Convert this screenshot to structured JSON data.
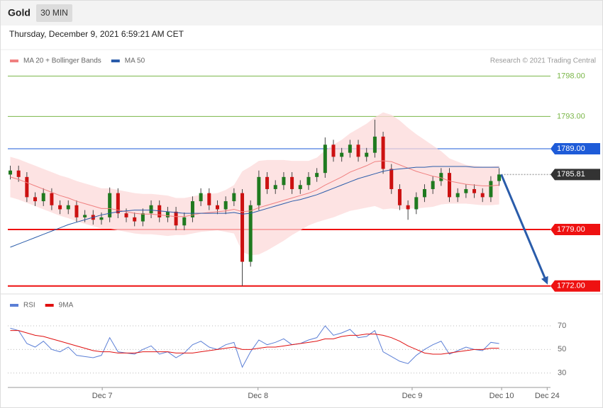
{
  "header": {
    "symbol": "Gold",
    "timeframe": "30 MIN",
    "datetime": "Thursday, December 9, 2021 6:59:21 AM CET",
    "credit": "Research © 2021 Trading Central"
  },
  "chart_data": [
    {
      "type": "candlestick",
      "up_color": "#1f7a1f",
      "down_color": "#cc1111",
      "open": [
        1785.8,
        1786.3,
        1785.5,
        1783.0,
        1782.5,
        1783.5,
        1782.0,
        1781.5,
        1782.0,
        1780.5,
        1780.8,
        1780.2,
        1780.5,
        1783.5,
        1781.0,
        1780.5,
        1780.0,
        1781.0,
        1782.0,
        1780.5,
        1781.2,
        1779.5,
        1780.5,
        1782.5,
        1783.5,
        1782.0,
        1781.5,
        1782.5,
        1783.5,
        1775.0,
        1782.0,
        1785.5,
        1784.0,
        1784.5,
        1785.5,
        1784.0,
        1784.5,
        1785.5,
        1786.0,
        1789.5,
        1788.0,
        1788.5,
        1789.5,
        1788.0,
        1788.5,
        1790.5,
        1786.5,
        1784.0,
        1782.0,
        1781.5,
        1783.0,
        1784.0,
        1785.0,
        1786.0,
        1783.0,
        1783.5,
        1784.0,
        1783.5,
        1783.0,
        1785.0
      ],
      "high": [
        1786.9,
        1786.9,
        1786.1,
        1783.6,
        1784.1,
        1784.1,
        1782.6,
        1782.6,
        1782.6,
        1781.4,
        1781.4,
        1781.1,
        1784.2,
        1784.1,
        1781.6,
        1781.1,
        1781.6,
        1782.6,
        1782.6,
        1781.8,
        1781.8,
        1781.1,
        1783.1,
        1784.1,
        1784.1,
        1782.6,
        1783.1,
        1784.1,
        1784.0,
        1782.6,
        1786.3,
        1786.1,
        1785.1,
        1786.1,
        1786.1,
        1785.1,
        1786.1,
        1786.6,
        1790.4,
        1790.1,
        1789.1,
        1790.1,
        1790.1,
        1789.1,
        1792.6,
        1791.1,
        1787.1,
        1784.6,
        1782.6,
        1783.6,
        1784.6,
        1785.6,
        1786.6,
        1786.6,
        1784.1,
        1784.6,
        1784.6,
        1784.1,
        1785.6,
        1786.6
      ],
      "low": [
        1785.2,
        1784.9,
        1782.4,
        1781.9,
        1781.9,
        1781.4,
        1780.9,
        1780.9,
        1779.9,
        1779.9,
        1779.6,
        1779.6,
        1779.9,
        1780.4,
        1779.9,
        1779.4,
        1779.4,
        1780.4,
        1779.9,
        1779.9,
        1778.9,
        1778.9,
        1779.9,
        1781.9,
        1781.4,
        1780.9,
        1780.9,
        1781.9,
        1772.0,
        1774.4,
        1781.4,
        1783.4,
        1783.4,
        1783.9,
        1783.4,
        1783.4,
        1783.9,
        1784.9,
        1785.4,
        1787.4,
        1787.4,
        1787.9,
        1787.4,
        1787.4,
        1787.9,
        1785.9,
        1783.4,
        1781.4,
        1780.2,
        1780.9,
        1782.4,
        1783.4,
        1784.4,
        1782.4,
        1782.4,
        1782.9,
        1782.9,
        1782.4,
        1782.4,
        1784.4
      ],
      "close": [
        1786.3,
        1785.5,
        1783.0,
        1782.5,
        1783.5,
        1782.0,
        1781.5,
        1782.0,
        1780.5,
        1780.8,
        1780.2,
        1780.5,
        1783.5,
        1781.0,
        1780.5,
        1780.0,
        1781.0,
        1782.0,
        1780.5,
        1781.2,
        1779.5,
        1780.5,
        1782.5,
        1783.5,
        1782.0,
        1781.5,
        1782.5,
        1783.5,
        1775.0,
        1782.0,
        1785.5,
        1784.0,
        1784.5,
        1785.5,
        1784.0,
        1784.5,
        1785.5,
        1786.0,
        1789.5,
        1788.0,
        1788.5,
        1789.5,
        1788.0,
        1788.5,
        1790.5,
        1786.5,
        1784.0,
        1782.0,
        1781.5,
        1783.0,
        1784.0,
        1785.0,
        1786.0,
        1783.0,
        1783.5,
        1784.0,
        1783.5,
        1783.0,
        1785.0,
        1785.81
      ],
      "series": [
        {
          "name": "MA 20 + Bollinger Bands",
          "color": "#f08080",
          "values": [
            1785.5,
            1785.2,
            1784.8,
            1784.4,
            1784.0,
            1783.6,
            1783.2,
            1782.9,
            1782.5,
            1782.2,
            1781.9,
            1781.6,
            1781.6,
            1781.4,
            1781.2,
            1781.0,
            1780.9,
            1780.9,
            1780.8,
            1780.7,
            1780.6,
            1780.6,
            1780.8,
            1781.0,
            1781.1,
            1781.2,
            1781.3,
            1781.5,
            1781.2,
            1781.3,
            1781.7,
            1782.0,
            1782.3,
            1782.6,
            1782.9,
            1783.2,
            1783.5,
            1783.9,
            1784.5,
            1785.0,
            1785.5,
            1786.1,
            1786.5,
            1786.9,
            1787.4,
            1787.5,
            1787.4,
            1787.0,
            1786.6,
            1786.2,
            1785.9,
            1785.6,
            1785.4,
            1785.0,
            1784.8,
            1784.6,
            1784.5,
            1784.4,
            1784.4,
            1784.5
          ],
          "upper": [
            1788.0,
            1787.7,
            1787.3,
            1786.9,
            1786.5,
            1786.1,
            1785.7,
            1785.4,
            1785.0,
            1784.7,
            1784.4,
            1784.1,
            1784.1,
            1783.9,
            1783.7,
            1783.5,
            1783.4,
            1783.4,
            1783.3,
            1783.2,
            1782.9,
            1782.9,
            1783.1,
            1783.3,
            1783.4,
            1783.5,
            1783.9,
            1784.5,
            1786.2,
            1786.8,
            1787.5,
            1787.6,
            1787.6,
            1787.6,
            1787.5,
            1787.5,
            1787.5,
            1787.9,
            1788.8,
            1789.5,
            1790.1,
            1790.9,
            1791.5,
            1792.1,
            1792.9,
            1793.5,
            1793.2,
            1792.5,
            1791.6,
            1790.8,
            1790.1,
            1789.4,
            1788.7,
            1787.8,
            1787.4,
            1787.0,
            1786.9,
            1786.8,
            1786.8,
            1786.9
          ],
          "lower": [
            1783.0,
            1782.7,
            1782.3,
            1781.9,
            1781.5,
            1781.1,
            1780.7,
            1780.4,
            1780.0,
            1779.7,
            1779.4,
            1779.1,
            1779.1,
            1778.9,
            1778.7,
            1778.5,
            1778.4,
            1778.4,
            1778.3,
            1778.2,
            1778.3,
            1778.3,
            1778.5,
            1778.7,
            1778.8,
            1778.9,
            1778.7,
            1778.5,
            1776.2,
            1775.8,
            1775.9,
            1776.4,
            1777.0,
            1777.6,
            1778.3,
            1778.9,
            1779.5,
            1779.9,
            1780.2,
            1780.5,
            1780.9,
            1781.3,
            1781.5,
            1781.7,
            1781.9,
            1781.5,
            1781.6,
            1781.5,
            1781.6,
            1781.6,
            1781.7,
            1781.8,
            1782.1,
            1782.2,
            1782.2,
            1782.2,
            1782.1,
            1782.0,
            1782.0,
            1782.1
          ]
        },
        {
          "name": "MA 50",
          "color": "#2a5caa",
          "values": [
            1776.8,
            1777.2,
            1777.6,
            1778.0,
            1778.4,
            1778.8,
            1779.2,
            1779.6,
            1779.9,
            1780.2,
            1780.5,
            1780.8,
            1781.0,
            1781.2,
            1781.3,
            1781.4,
            1781.4,
            1781.4,
            1781.3,
            1781.2,
            1781.1,
            1781.0,
            1781.0,
            1781.0,
            1781.0,
            1781.0,
            1781.0,
            1781.1,
            1780.9,
            1781.0,
            1781.3,
            1781.6,
            1781.9,
            1782.2,
            1782.5,
            1782.7,
            1783.0,
            1783.3,
            1783.7,
            1784.1,
            1784.5,
            1784.9,
            1785.3,
            1785.6,
            1785.9,
            1786.2,
            1786.4,
            1786.5,
            1786.6,
            1786.7,
            1786.7,
            1786.8,
            1786.8,
            1786.8,
            1786.8,
            1786.8,
            1786.7,
            1786.7,
            1786.7,
            1786.7
          ]
        }
      ],
      "levels": [
        {
          "value": 1798,
          "label": "1798.00",
          "color": "#7ab648",
          "tag": false
        },
        {
          "value": 1793,
          "label": "1793.00",
          "color": "#7ab648",
          "tag": false
        },
        {
          "value": 1789,
          "label": "1789.00",
          "color": "#1e5bd8",
          "tag": true
        },
        {
          "value": 1785.81,
          "label": "1785.81",
          "color": "#333333",
          "tag": true,
          "dash": true
        },
        {
          "value": 1779,
          "label": "1779.00",
          "color": "#ee1111",
          "tag": true
        },
        {
          "value": 1772,
          "label": "1772.00",
          "color": "#ee1111",
          "tag": true
        }
      ],
      "forecast_color": "#2a5caa",
      "xlim": [
        -0.3,
        65.2
      ],
      "ylim": [
        1771.1,
        1799.7
      ]
    },
    {
      "type": "line",
      "series": [
        {
          "name": "RSI",
          "color": "#5b7fd6",
          "values": [
            68,
            66,
            55,
            52,
            57,
            50,
            48,
            52,
            45,
            44,
            43,
            45,
            60,
            48,
            47,
            46,
            50,
            53,
            46,
            48,
            43,
            47,
            54,
            57,
            52,
            50,
            54,
            56,
            35,
            48,
            58,
            54,
            56,
            59,
            54,
            55,
            58,
            60,
            70,
            62,
            64,
            67,
            60,
            61,
            66,
            48,
            44,
            40,
            38,
            45,
            50,
            54,
            57,
            46,
            49,
            52,
            50,
            49,
            56,
            55
          ]
        },
        {
          "name": "9MA",
          "color": "#e01010",
          "values": [
            66,
            66,
            64,
            62,
            61,
            59,
            57,
            55,
            53,
            51,
            49,
            48,
            48,
            47,
            47,
            47,
            48,
            48,
            48,
            48,
            47,
            47,
            47,
            48,
            49,
            50,
            51,
            52,
            50,
            50,
            51,
            52,
            52,
            53,
            54,
            55,
            56,
            57,
            59,
            59,
            61,
            62,
            62,
            63,
            63,
            62,
            60,
            57,
            53,
            50,
            47,
            46,
            46,
            47,
            48,
            49,
            50,
            50,
            51,
            51
          ]
        }
      ],
      "xlim": [
        -0.3,
        65.2
      ],
      "xticks": [
        {
          "value": 11.1,
          "label": "Dec 7"
        },
        {
          "value": 29.9,
          "label": "Dec 8"
        },
        {
          "value": 48.5,
          "label": "Dec 9"
        },
        {
          "value": 59.3,
          "label": "Dec 10"
        },
        {
          "value": 64.8,
          "label": "Dec 24"
        }
      ],
      "ylim": [
        19,
        94
      ],
      "yticks": [
        30,
        50,
        70
      ],
      "grid": true
    }
  ]
}
